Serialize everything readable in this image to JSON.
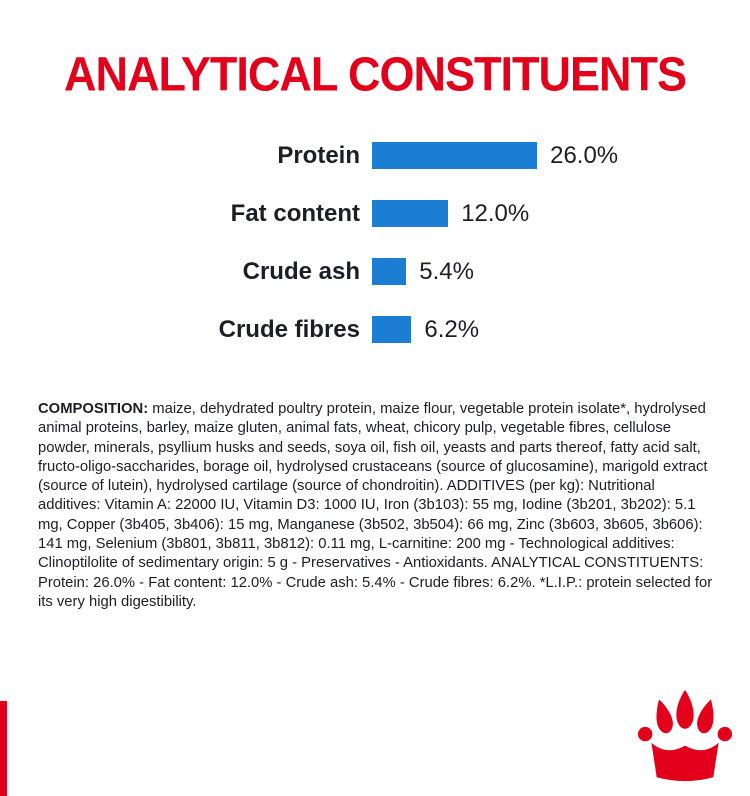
{
  "title": "ANALYTICAL CONSTITUENTS",
  "colors": {
    "brand_red": "#e2001a",
    "bar_blue": "#1c7ed3",
    "text_dark": "#1c1d25"
  },
  "chart_data": {
    "type": "bar",
    "orientation": "horizontal",
    "title": "ANALYTICAL CONSTITUENTS",
    "categories": [
      "Protein",
      "Fat content",
      "Crude ash",
      "Crude fibres"
    ],
    "values": [
      26.0,
      12.0,
      5.4,
      6.2
    ],
    "value_labels": [
      "26.0%",
      "12.0%",
      "5.4%",
      "6.2%"
    ],
    "unit": "%",
    "xlim": [
      0,
      26
    ],
    "grid": false,
    "legend": "none",
    "bar_color": "#1c7ed3"
  },
  "composition": {
    "label": "COMPOSITION:",
    "text": " maize, dehydrated poultry protein, maize flour, vegetable protein isolate*, hydrolysed animal proteins, barley, maize gluten, animal fats, wheat, chicory pulp, vegetable fibres, cellulose powder, minerals, psyllium husks and seeds, soya oil, fish oil, yeasts and parts thereof, fatty acid salt, fructo-oligo-saccharides, borage oil, hydrolysed crustaceans (source of glucosamine), marigold extract (source of lutein), hydrolysed cartilage (source of chondroitin). ADDITIVES (per kg): Nutritional additives: Vitamin A: 22000 IU, Vitamin D3: 1000 IU, Iron (3b103): 55 mg, Iodine (3b201, 3b202): 5.1 mg, Copper (3b405, 3b406): 15 mg, Manganese (3b502, 3b504): 66 mg, Zinc (3b603, 3b605, 3b606): 141 mg, Selenium (3b801, 3b811, 3b812): 0.11 mg, L-carnitine: 200 mg - Technological additives: Clinoptilolite of sedimentary origin: 5 g - Preservatives - Antioxidants. ANALYTICAL CONSTITUENTS: Protein: 26.0% - Fat content: 12.0% - Crude ash: 5.4% - Crude fibres: 6.2%. *L.I.P.: protein selected for its very high digestibility."
  },
  "logo": {
    "name": "royal-canin-crown-paw-logo",
    "color": "#e2001a"
  }
}
